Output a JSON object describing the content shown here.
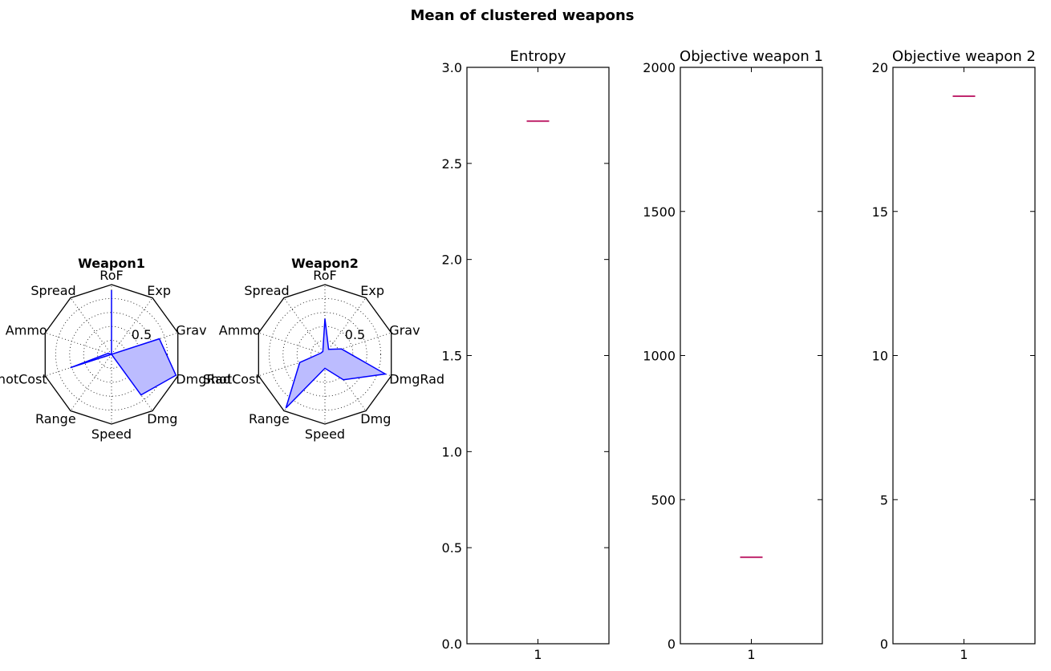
{
  "figure": {
    "title": "Mean of clustered weapons"
  },
  "chart_data": [
    {
      "type": "radar",
      "title": "Weapon1",
      "axes": [
        "RoF",
        "Exp",
        "Grav",
        "DmgRad",
        "Dmg",
        "Speed",
        "Range",
        "ShotCost",
        "Ammo",
        "Spread"
      ],
      "rlim": [
        0,
        1
      ],
      "r_tick_label": "0.5",
      "values": [
        0.92,
        0.0,
        0.72,
        0.97,
        0.72,
        0.0,
        0.0,
        0.62,
        0.05,
        0.0
      ],
      "color": "#0000ff",
      "fill": "#bcbcff"
    },
    {
      "type": "radar",
      "title": "Weapon2",
      "axes": [
        "RoF",
        "Exp",
        "Grav",
        "DmgRad",
        "Dmg",
        "Speed",
        "Range",
        "ShotCost",
        "Ammo",
        "Spread"
      ],
      "rlim": [
        0,
        1
      ],
      "r_tick_label": "0.5",
      "values": [
        0.51,
        0.09,
        0.25,
        0.91,
        0.45,
        0.2,
        0.95,
        0.38,
        0.06,
        0.05
      ],
      "color": "#0000ff",
      "fill": "#bcbcff"
    },
    {
      "type": "box",
      "title": "Entropy",
      "categories": [
        "1"
      ],
      "values": [
        2.72
      ],
      "ylim": [
        0,
        3.0
      ],
      "yticks": [
        "0.0",
        "0.5",
        "1.0",
        "1.5",
        "2.0",
        "2.5",
        "3.0"
      ],
      "color": "#c0286e"
    },
    {
      "type": "box",
      "title": "Objective weapon 1",
      "categories": [
        "1"
      ],
      "values": [
        300
      ],
      "ylim": [
        0,
        2000
      ],
      "yticks": [
        "0",
        "500",
        "1000",
        "1500",
        "2000"
      ],
      "color": "#c0286e"
    },
    {
      "type": "box",
      "title": "Objective weapon 2",
      "categories": [
        "1"
      ],
      "values": [
        19
      ],
      "ylim": [
        0,
        20
      ],
      "yticks": [
        "0",
        "5",
        "10",
        "15",
        "20"
      ],
      "color": "#c0286e"
    }
  ]
}
